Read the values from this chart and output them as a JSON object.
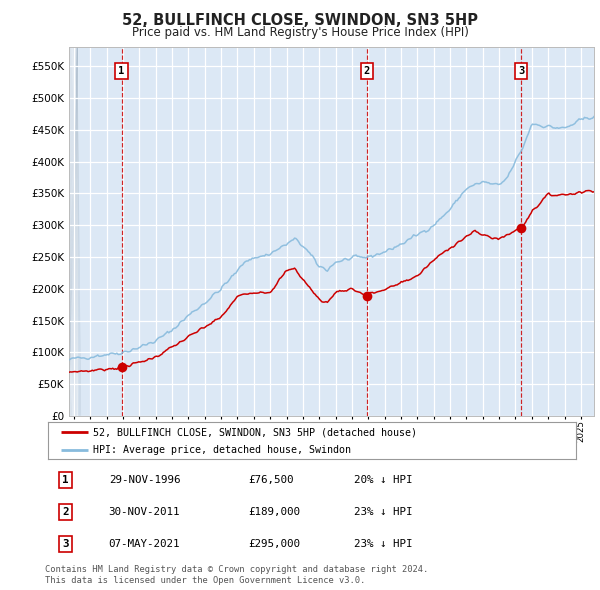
{
  "title": "52, BULLFINCH CLOSE, SWINDON, SN3 5HP",
  "subtitle": "Price paid vs. HM Land Registry's House Price Index (HPI)",
  "bg_color": "#f5f5f5",
  "plot_bg_color": "#dce8f5",
  "grid_color": "#ffffff",
  "hpi_color": "#88bbdd",
  "price_color": "#cc0000",
  "sale_marker_color": "#cc0000",
  "vline_color": "#cc0000",
  "ylim": [
    0,
    580000
  ],
  "yticks": [
    0,
    50000,
    100000,
    150000,
    200000,
    250000,
    300000,
    350000,
    400000,
    450000,
    500000,
    550000
  ],
  "ytick_labels": [
    "£0",
    "£50K",
    "£100K",
    "£150K",
    "£200K",
    "£250K",
    "£300K",
    "£350K",
    "£400K",
    "£450K",
    "£500K",
    "£550K"
  ],
  "sales": [
    {
      "date_num": 1996.91,
      "price": 76500,
      "label": "1"
    },
    {
      "date_num": 2011.91,
      "price": 189000,
      "label": "2"
    },
    {
      "date_num": 2021.35,
      "price": 295000,
      "label": "3"
    }
  ],
  "sale_labels_info": [
    {
      "label": "1",
      "date": "29-NOV-1996",
      "price": "£76,500",
      "pct": "20% ↓ HPI"
    },
    {
      "label": "2",
      "date": "30-NOV-2011",
      "price": "£189,000",
      "pct": "23% ↓ HPI"
    },
    {
      "label": "3",
      "date": "07-MAY-2021",
      "price": "£295,000",
      "pct": "23% ↓ HPI"
    }
  ],
  "legend_line1": "52, BULLFINCH CLOSE, SWINDON, SN3 5HP (detached house)",
  "legend_line2": "HPI: Average price, detached house, Swindon",
  "footer": "Contains HM Land Registry data © Crown copyright and database right 2024.\nThis data is licensed under the Open Government Licence v3.0.",
  "xmin": 1993.7,
  "xmax": 2025.8
}
